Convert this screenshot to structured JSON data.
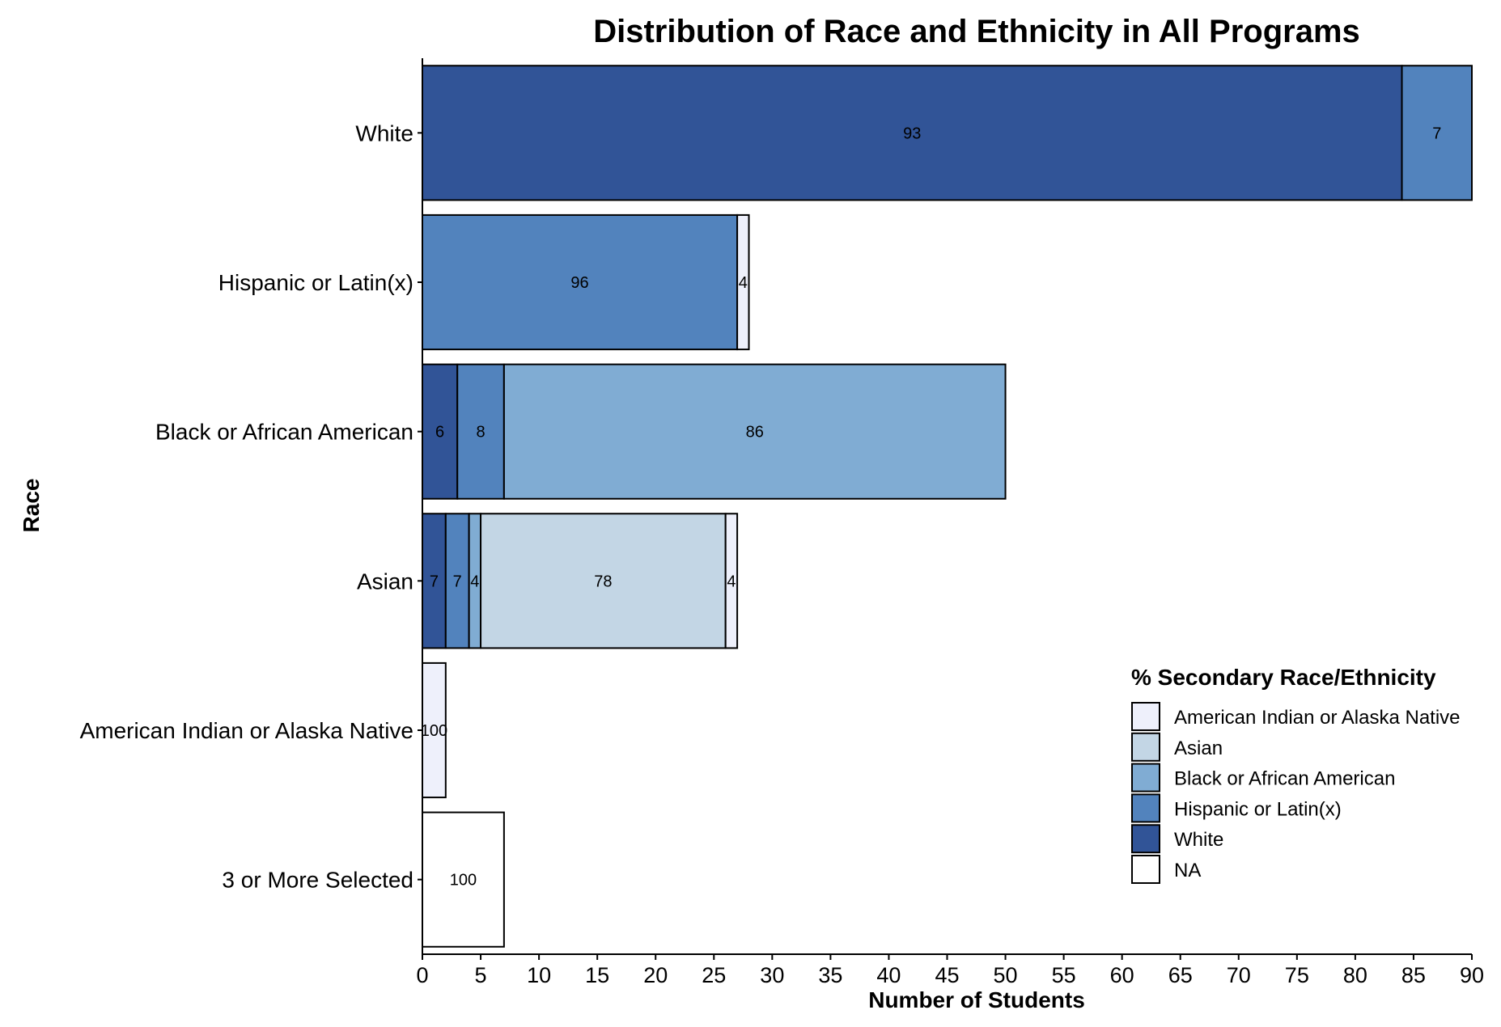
{
  "chart_data": {
    "type": "bar",
    "orientation": "horizontal",
    "stacked": true,
    "title": "Distribution of Race and Ethnicity in All Programs",
    "xlabel": "Number of Students",
    "ylabel": "Race",
    "xlim": [
      0,
      90
    ],
    "x_ticks": [
      0,
      5,
      10,
      15,
      20,
      25,
      30,
      35,
      40,
      45,
      50,
      55,
      60,
      65,
      70,
      75,
      80,
      85,
      90
    ],
    "grid": false,
    "legend": {
      "title": "% Secondary Race/Ethnicity",
      "placement": "bottom-right",
      "entries": [
        {
          "name": "American Indian or Alaska Native",
          "color": "#eef0fb"
        },
        {
          "name": "Asian",
          "color": "#c3d6e5"
        },
        {
          "name": "Black or African American",
          "color": "#80acd3"
        },
        {
          "name": "Hispanic or Latin(x)",
          "color": "#5283bd"
        },
        {
          "name": "White",
          "color": "#315497"
        },
        {
          "name": "NA",
          "color": "#ffffff"
        }
      ]
    },
    "categories": [
      {
        "name": "White",
        "segments": [
          {
            "group": "White",
            "count": 84,
            "percent_label": "93"
          },
          {
            "group": "Hispanic or Latin(x)",
            "count": 6,
            "percent_label": "7"
          }
        ]
      },
      {
        "name": "Hispanic or Latin(x)",
        "segments": [
          {
            "group": "Hispanic or Latin(x)",
            "count": 27,
            "percent_label": "96"
          },
          {
            "group": "American Indian or Alaska Native",
            "count": 1,
            "percent_label": "4"
          }
        ]
      },
      {
        "name": "Black or African American",
        "segments": [
          {
            "group": "White",
            "count": 3,
            "percent_label": "6"
          },
          {
            "group": "Hispanic or Latin(x)",
            "count": 4,
            "percent_label": "8"
          },
          {
            "group": "Black or African American",
            "count": 43,
            "percent_label": "86"
          }
        ]
      },
      {
        "name": "Asian",
        "segments": [
          {
            "group": "White",
            "count": 2,
            "percent_label": "7"
          },
          {
            "group": "Hispanic or Latin(x)",
            "count": 2,
            "percent_label": "7"
          },
          {
            "group": "Black or African American",
            "count": 1,
            "percent_label": "4"
          },
          {
            "group": "Asian",
            "count": 21,
            "percent_label": "78"
          },
          {
            "group": "American Indian or Alaska Native",
            "count": 1,
            "percent_label": "4"
          }
        ]
      },
      {
        "name": "American Indian or Alaska Native",
        "segments": [
          {
            "group": "American Indian or Alaska Native",
            "count": 2,
            "percent_label": "100"
          }
        ]
      },
      {
        "name": "3 or More Selected",
        "segments": [
          {
            "group": "NA",
            "count": 7,
            "percent_label": "100"
          }
        ]
      }
    ]
  }
}
